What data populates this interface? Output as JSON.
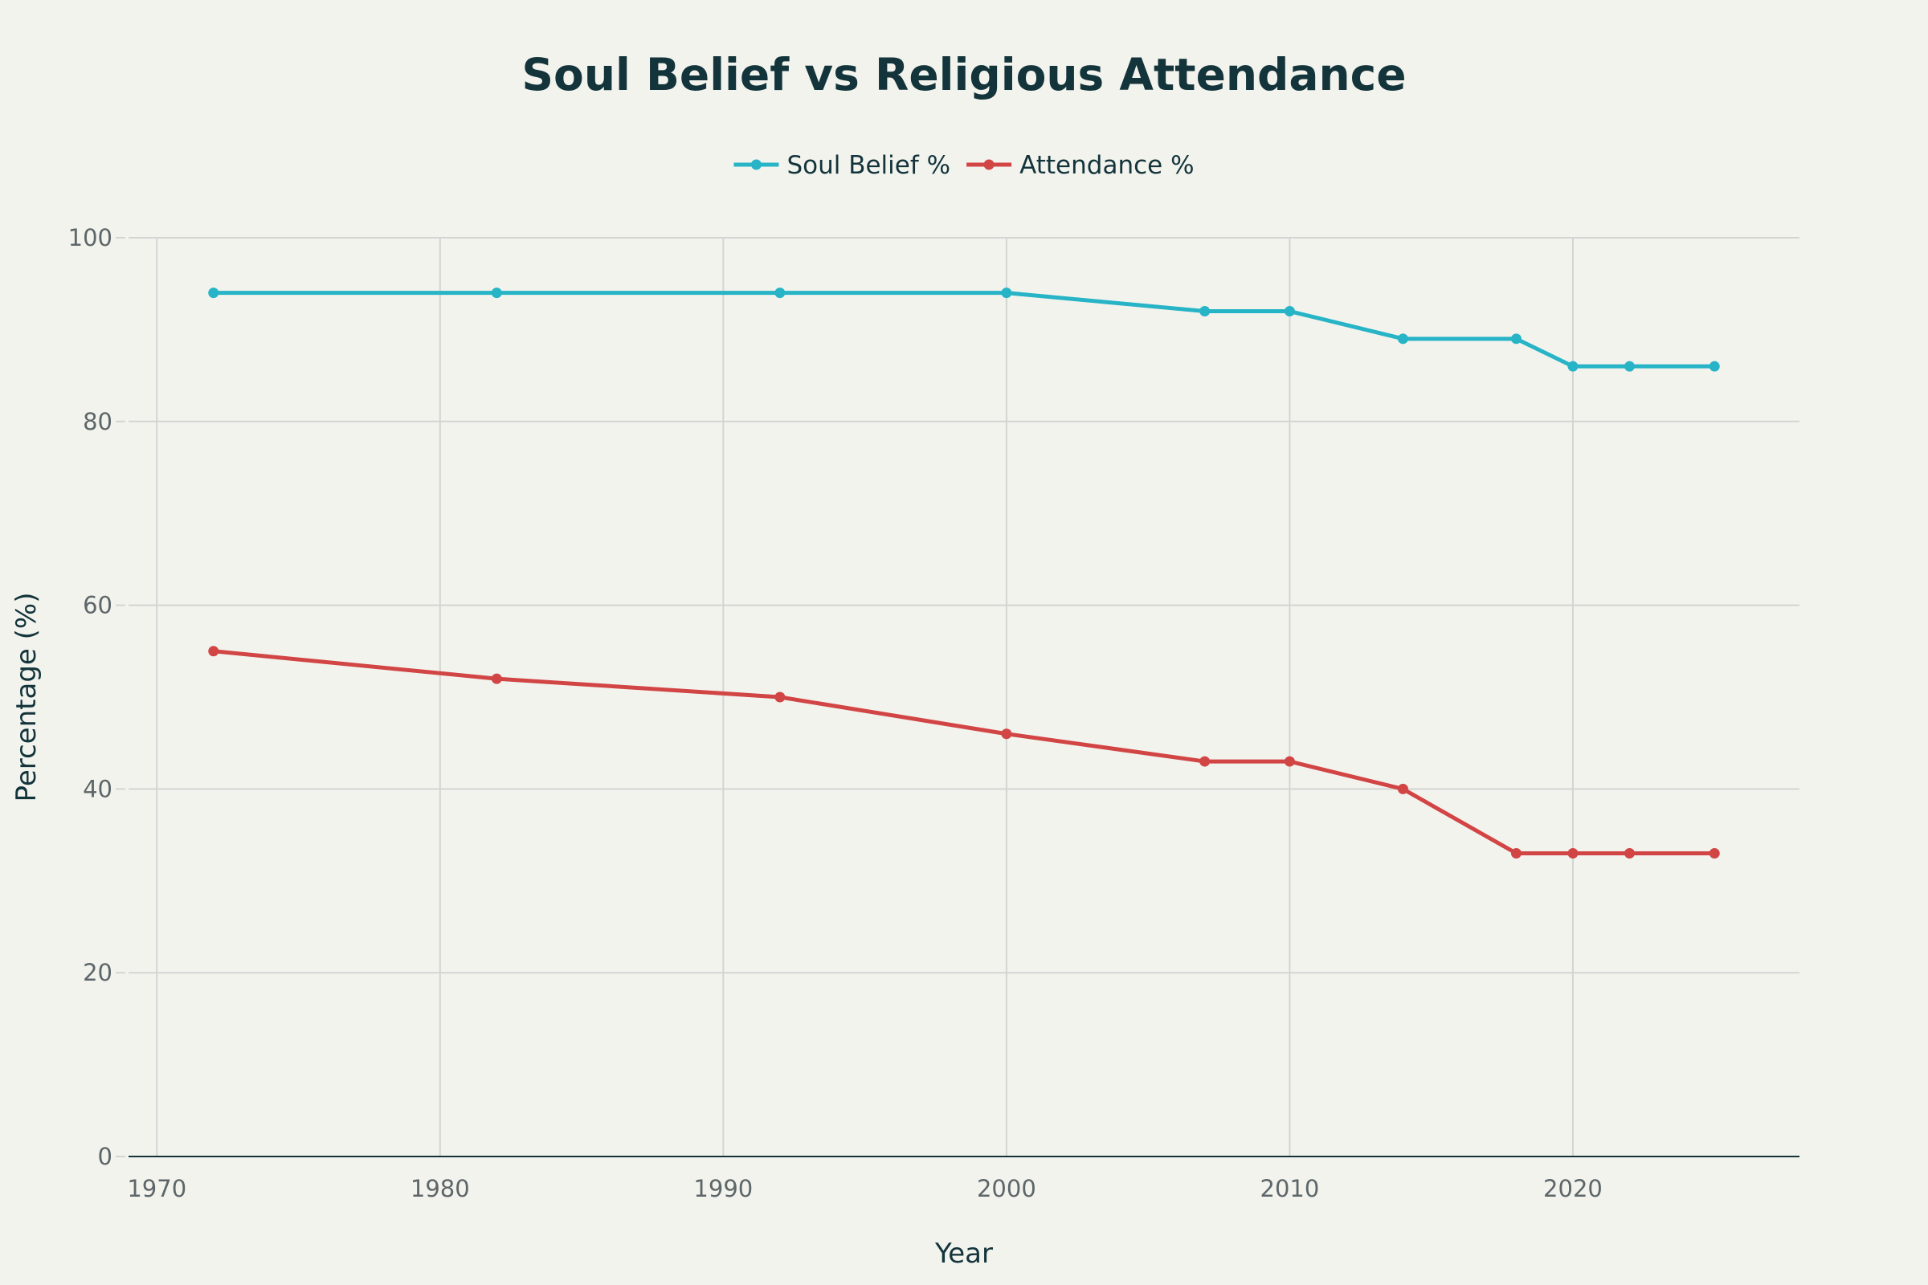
{
  "chart_data": {
    "type": "line",
    "title": "Soul Belief vs Religious Attendance",
    "xlabel": "Year",
    "ylabel": "Percentage (%)",
    "x": [
      1972,
      1982,
      1992,
      2000,
      2007,
      2010,
      2014,
      2018,
      2020,
      2022,
      2025
    ],
    "series": [
      {
        "name": "Soul Belief %",
        "color": "#26b4c6",
        "values": [
          94,
          94,
          94,
          94,
          92,
          92,
          89,
          89,
          86,
          86,
          86
        ]
      },
      {
        "name": "Attendance %",
        "color": "#d24545",
        "values": [
          55,
          52,
          50,
          46,
          43,
          43,
          40,
          33,
          33,
          33,
          33
        ]
      }
    ],
    "xlim": [
      1969,
      2028
    ],
    "ylim": [
      0,
      100
    ],
    "xticks": [
      1970,
      1980,
      1990,
      2000,
      2010,
      2020
    ],
    "yticks": [
      0,
      20,
      40,
      60,
      80,
      100
    ],
    "grid": true,
    "legend_position": "top-center",
    "colors": {
      "background": "#f3f3ee",
      "grid": "#d3d5d2",
      "axis": "#13343b",
      "tick_text": "#5d6668",
      "title": "#13343b"
    }
  }
}
